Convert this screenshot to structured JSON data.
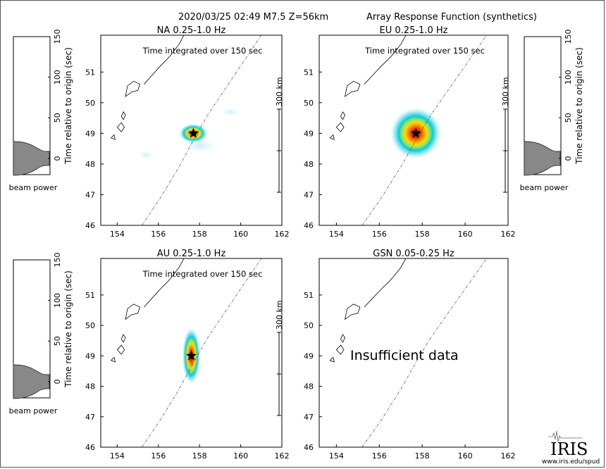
{
  "header": {
    "event": "2020/03/25 02:49  M7.5  Z=56km",
    "product": "Array Response Function (synthetics)"
  },
  "chart_data": [
    {
      "type": "heatmap",
      "title": "NA  0.25-1.0 Hz",
      "annotation": "Time integrated over 150 sec",
      "xticks": [
        154,
        156,
        158,
        160,
        162
      ],
      "yticks": [
        46,
        47,
        48,
        49,
        50,
        51
      ],
      "xlim": [
        153.2,
        162
      ],
      "ylim": [
        46,
        52.2
      ],
      "scale_label": "300 km",
      "peak": {
        "lon": 157.7,
        "lat": 49.0
      },
      "beam_shape": {
        "rx": 0.7,
        "ry": 0.32,
        "angle_deg": 0,
        "intensity": "high"
      },
      "sidelobes": [
        {
          "lon": 158.0,
          "lat": 48.6,
          "rx": 0.9,
          "ry": 0.25
        },
        {
          "lon": 159.5,
          "lat": 49.7,
          "rx": 0.45,
          "ry": 0.15
        },
        {
          "lon": 155.4,
          "lat": 48.3,
          "rx": 0.35,
          "ry": 0.15
        }
      ],
      "beam_power_trace": {
        "ylabel": "Time relative to origin (sec)",
        "yticks": [
          0,
          50,
          100,
          150
        ],
        "xlabel": "beam power",
        "peak_time": 0
      },
      "beam_power_side": "left"
    },
    {
      "type": "heatmap",
      "title": "EU  0.25-1.0 Hz",
      "annotation": "Time integrated over 150 sec",
      "xticks": [
        154,
        156,
        158,
        160,
        162
      ],
      "yticks": [
        46,
        47,
        48,
        49,
        50,
        51
      ],
      "xlim": [
        153.2,
        162
      ],
      "ylim": [
        46,
        52.2
      ],
      "scale_label": "300 km",
      "peak": {
        "lon": 157.7,
        "lat": 49.0
      },
      "beam_shape": {
        "rx": 1.2,
        "ry": 0.85,
        "angle_deg": 30,
        "intensity": "high"
      },
      "sidelobes": [],
      "beam_power_trace": {
        "ylabel": "Time relative to origin (sec)",
        "yticks": [
          0,
          50,
          100,
          150
        ],
        "xlabel": "beam power",
        "peak_time": 0
      },
      "beam_power_side": "right"
    },
    {
      "type": "heatmap",
      "title": "AU  0.25-1.0 Hz",
      "annotation": "Time integrated over 150 sec",
      "xticks": [
        154,
        156,
        158,
        160,
        162
      ],
      "yticks": [
        46,
        47,
        48,
        49,
        50,
        51
      ],
      "xlim": [
        153.2,
        162
      ],
      "ylim": [
        46,
        52.2
      ],
      "scale_label": "300 km",
      "peak": {
        "lon": 157.6,
        "lat": 49.0
      },
      "beam_shape": {
        "rx": 0.45,
        "ry": 0.95,
        "angle_deg": 0,
        "intensity": "high"
      },
      "sidelobes": [],
      "beam_power_trace": {
        "ylabel": "Time relative to origin (sec)",
        "yticks": [
          0,
          50,
          100,
          150
        ],
        "xlabel": "beam power",
        "peak_time": 0
      },
      "beam_power_side": "left"
    },
    {
      "type": "heatmap",
      "title": "GSN  0.05-0.25 Hz",
      "annotation": "",
      "xticks": [
        154,
        156,
        158,
        160,
        162
      ],
      "yticks": [
        46,
        47,
        48,
        49,
        50,
        51
      ],
      "xlim": [
        153.2,
        162
      ],
      "ylim": [
        46,
        52.2
      ],
      "scale_label": "",
      "message": "Insufficient data",
      "peak": null,
      "beam_shape": null,
      "sidelobes": [],
      "beam_power_trace": null,
      "beam_power_side": "none"
    }
  ],
  "logo": {
    "text": "IRIS",
    "url": "www.iris.edu/spud"
  },
  "colors": {
    "peak_star": "#000000",
    "beam_core": "#cc0000",
    "beam_mid": "#ffb000",
    "beam_outer": "#00c8e0",
    "coast": "#000000",
    "trench": "#444444"
  }
}
